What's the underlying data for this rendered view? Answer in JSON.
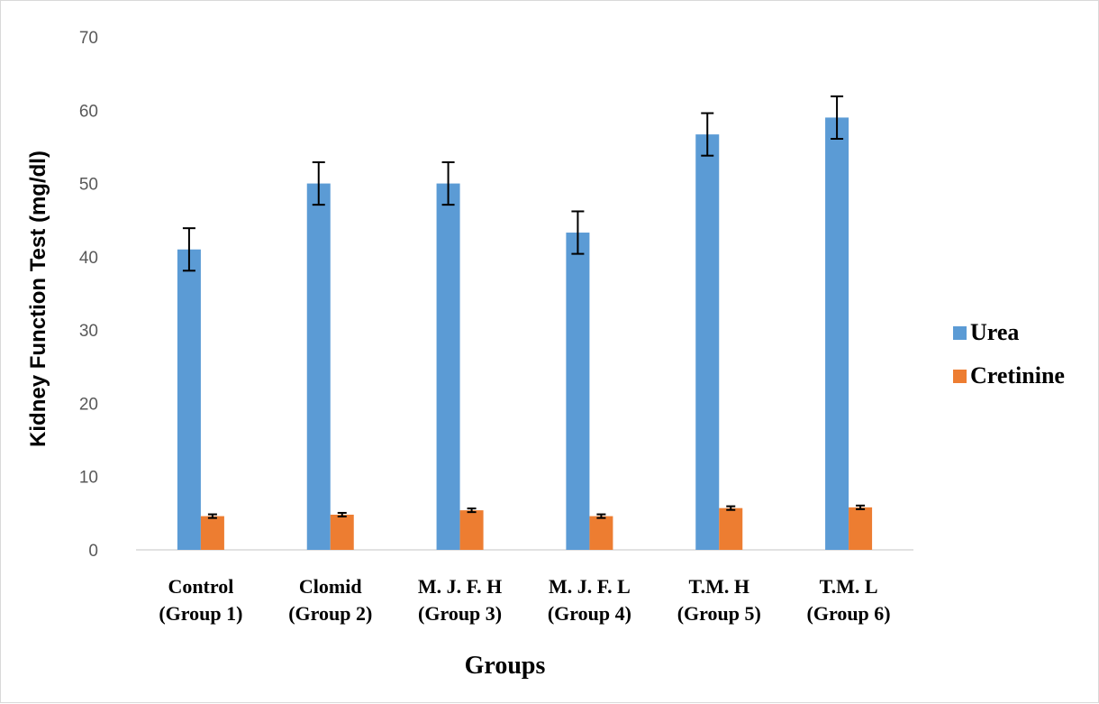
{
  "chart_data": {
    "type": "bar",
    "categories": [
      [
        "Control",
        "(Group 1)"
      ],
      [
        "Clomid",
        "(Group 2)"
      ],
      [
        "M. J. F. H",
        "(Group 3)"
      ],
      [
        "M. J. F. L",
        "(Group 4)"
      ],
      [
        "T.M. H",
        "(Group 5)"
      ],
      [
        "T.M. L",
        "(Group 6)"
      ]
    ],
    "series": [
      {
        "name": "Urea",
        "color": "#5b9bd5",
        "values": [
          41.0,
          50.0,
          50.0,
          43.3,
          56.7,
          59.0
        ],
        "errors": [
          2.9,
          2.9,
          2.9,
          2.9,
          2.9,
          2.9
        ]
      },
      {
        "name": "Cretinine",
        "color": "#ed7d31",
        "values": [
          4.6,
          4.8,
          5.4,
          4.6,
          5.7,
          5.8
        ],
        "errors": [
          0.25,
          0.25,
          0.25,
          0.25,
          0.25,
          0.25
        ]
      }
    ],
    "xlabel": "Groups",
    "ylabel": "Kidney Function Test (mg/dl)",
    "ylim": [
      0,
      70
    ],
    "yticks": [
      0,
      10,
      20,
      30,
      40,
      50,
      60,
      70
    ],
    "grid": false,
    "legend_position": "right"
  }
}
